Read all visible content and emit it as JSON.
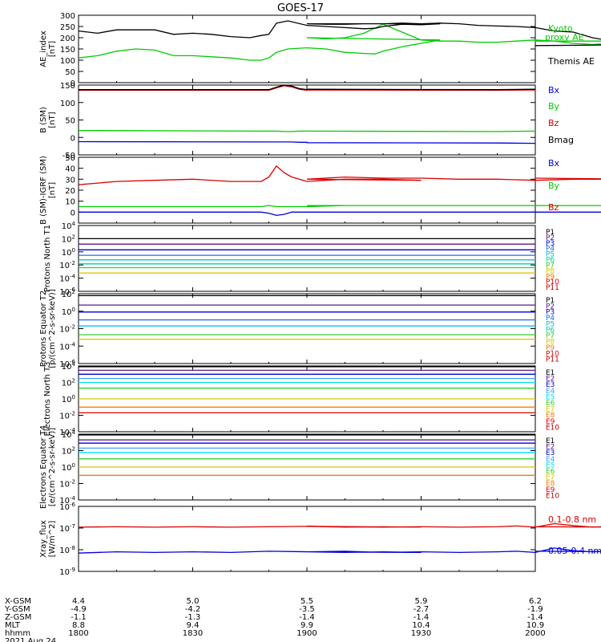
{
  "title": "GOES-17",
  "colors": {
    "black": "#000000",
    "blue": "#0000dd",
    "green": "#00cc00",
    "red": "#dd0000",
    "navy": "#1010a0",
    "purple": "#5a1a8a",
    "azure": "#1a70e0",
    "cyan": "#00c0e0",
    "teal": "#00d0a0",
    "lime": "#30d030",
    "gold": "#d8c800",
    "orange": "#f08000",
    "darkorange": "#e05000",
    "crimson": "#e00000",
    "maroon": "#c00000",
    "lightblue": "#40a0ff",
    "lightcyan": "#00e0ff"
  },
  "chart_data": [
    {
      "type": "line",
      "ylabel": "AE_index [nT]",
      "ylim": [
        0,
        300
      ],
      "yticks": [
        "0",
        "50",
        "100",
        "150",
        "200",
        "250",
        "300"
      ],
      "x": [
        1800,
        1805,
        1810,
        1815,
        1820,
        1825,
        1830,
        1835,
        1840,
        1845,
        1848,
        1850,
        1852,
        1855,
        1860,
        1865,
        1870,
        1875,
        1878,
        1880,
        1885,
        1890,
        1895,
        1900,
        1905,
        1910,
        1915,
        1920,
        1925,
        1930,
        1935,
        1940,
        1945,
        1950,
        1955,
        1960,
        1965,
        1970,
        1975,
        1980,
        1985,
        1990,
        1995,
        2000
      ],
      "series": [
        {
          "name": "Kyoto proxy AE",
          "color": "#00cc00",
          "values": [
            110,
            120,
            140,
            150,
            145,
            120,
            120,
            115,
            110,
            100,
            100,
            110,
            135,
            150,
            155,
            150,
            135,
            130,
            128,
            140,
            160,
            175,
            190,
            200,
            195,
            200,
            220,
            260,
            225,
            190,
            185,
            185,
            180,
            180,
            185,
            190,
            185,
            175,
            170,
            175,
            170,
            175,
            185,
            185
          ]
        },
        {
          "name": "Themis AE",
          "color": "#000000",
          "values": [
            230,
            220,
            235,
            235,
            235,
            215,
            220,
            215,
            205,
            200,
            210,
            215,
            265,
            275,
            255,
            250,
            245,
            240,
            242,
            250,
            260,
            258,
            262,
            262,
            260,
            260,
            262,
            262,
            265,
            262,
            265,
            262,
            255,
            252,
            250,
            245,
            230,
            225,
            200,
            185,
            180,
            180,
            170,
            165
          ]
        }
      ]
    },
    {
      "type": "line",
      "ylabel": "B (SM) [nT]",
      "ylim": [
        -50,
        150
      ],
      "yticks": [
        "-50",
        "0",
        "50",
        "100",
        "150"
      ],
      "x": [
        1800,
        1850,
        1852,
        1854,
        1856,
        1858,
        1860,
        1900,
        1950,
        2000
      ],
      "series": [
        {
          "name": "Bx",
          "color": "#0000dd",
          "values": [
            -12,
            -13,
            -13,
            -13,
            -13,
            -14,
            -14,
            -15,
            -16,
            -17
          ]
        },
        {
          "name": "By",
          "color": "#00cc00",
          "values": [
            20,
            18,
            18,
            17,
            17,
            18,
            18,
            18,
            17,
            18
          ]
        },
        {
          "name": "Bz",
          "color": "#dd0000",
          "values": [
            135,
            135,
            142,
            148,
            145,
            138,
            135,
            136,
            135,
            136
          ]
        },
        {
          "name": "Bmag",
          "color": "#000000",
          "values": [
            137,
            137,
            144,
            150,
            147,
            140,
            137,
            138,
            137,
            138
          ]
        }
      ]
    },
    {
      "type": "line",
      "ylabel": "B (SM)-IGRF (SM) [nT]",
      "ylim": [
        -10,
        50
      ],
      "yticks": [
        "0",
        "10",
        "20",
        "30",
        "40",
        "50"
      ],
      "x": [
        1800,
        1810,
        1820,
        1830,
        1840,
        1848,
        1850,
        1852,
        1854,
        1856,
        1858,
        1860,
        1870,
        1880,
        1890,
        1900,
        1910,
        1920,
        1930,
        1940,
        1950,
        1960,
        1970,
        1980,
        1990,
        2000
      ],
      "series": [
        {
          "name": "Bx",
          "color": "#0000dd",
          "values": [
            0,
            0,
            0,
            0,
            0,
            0,
            -1,
            -3,
            -2,
            0,
            0,
            0,
            0,
            0,
            0,
            0,
            0,
            0,
            0,
            0,
            0,
            0,
            0,
            0,
            0,
            0
          ]
        },
        {
          "name": "By",
          "color": "#00cc00",
          "values": [
            5,
            5,
            5,
            5,
            5,
            5,
            6,
            5,
            5,
            5,
            5,
            5,
            6,
            6,
            6,
            6,
            6,
            6,
            6,
            6,
            6,
            6,
            6,
            6,
            6,
            6
          ]
        },
        {
          "name": "Bz",
          "color": "#dd0000",
          "values": [
            25,
            28,
            29,
            30,
            28,
            28,
            32,
            42,
            36,
            32,
            30,
            28,
            30,
            30,
            29,
            30,
            32,
            31,
            31,
            30,
            30,
            29,
            30,
            30,
            30,
            31
          ]
        }
      ]
    },
    {
      "type": "line",
      "ylabel": "Protons North T1",
      "yscale": "log",
      "ylim": [
        1e-06,
        10000.0
      ],
      "yticks": [
        "10^-6",
        "10^-4",
        "10^-2",
        "10^0",
        "10^2",
        "10^4"
      ],
      "legend": [
        "P1",
        "P2",
        "P3",
        "P4",
        "P5",
        "P6",
        "P7",
        "P8",
        "P9",
        "P10",
        "P11"
      ],
      "x": [
        1800,
        2000
      ],
      "series": [
        {
          "name": "P1",
          "color": "#000000",
          "values": [
            100,
            100
          ]
        },
        {
          "name": "P2",
          "color": "#5a1a8a",
          "values": [
            15,
            15
          ]
        },
        {
          "name": "P3",
          "color": "#0000dd",
          "values": [
            2,
            2
          ]
        },
        {
          "name": "P4",
          "color": "#1a70e0",
          "values": [
            0.3,
            0.3
          ]
        },
        {
          "name": "P5",
          "color": "#00c0e0",
          "values": [
            0.06,
            0.06
          ]
        },
        {
          "name": "P6",
          "color": "#00d0a0",
          "values": [
            0.015,
            0.015
          ]
        },
        {
          "name": "P7",
          "color": "#30d030",
          "values": [
            0.004,
            0.004
          ]
        },
        {
          "name": "P8",
          "color": "#d8c800",
          "values": [
            0.0006,
            0.0006
          ]
        }
      ]
    },
    {
      "type": "line",
      "ylabel": "Protons Equator T2 [p/(cm^2-s-sr-keV)]",
      "yscale": "log",
      "ylim": [
        1e-06,
        100.0
      ],
      "yticks": [
        "10^-6",
        "10^-4",
        "10^-2",
        "10^0",
        "10^2"
      ],
      "legend": [
        "P1",
        "P2",
        "P3",
        "P4",
        "P5",
        "P6",
        "P7",
        "P8",
        "P9",
        "P10",
        "P11"
      ],
      "x": [
        1800,
        2000
      ],
      "series": [
        {
          "name": "P1",
          "color": "#000000",
          "values": [
            60,
            60
          ]
        },
        {
          "name": "P2",
          "color": "#5a1a8a",
          "values": [
            5,
            5
          ]
        },
        {
          "name": "P3",
          "color": "#0000dd",
          "values": [
            0.8,
            0.8
          ]
        },
        {
          "name": "P4",
          "color": "#1a70e0",
          "values": [
            0.1,
            0.1
          ]
        },
        {
          "name": "P5",
          "color": "#00c0e0",
          "values": [
            0.02,
            0.02
          ]
        },
        {
          "name": "P6",
          "color": "#30d030",
          "values": [
            0.002,
            0.002
          ]
        },
        {
          "name": "P7",
          "color": "#d8c800",
          "values": [
            0.0006,
            0.0006
          ]
        }
      ]
    },
    {
      "type": "line",
      "ylabel": "Electrons North T3",
      "yscale": "log",
      "ylim": [
        0.0001,
        10000.0
      ],
      "yticks": [
        "10^-4",
        "10^-2",
        "10^0",
        "10^2",
        "10^4"
      ],
      "legend": [
        "E1",
        "E2",
        "E3",
        "E4",
        "E5",
        "E6",
        "E7",
        "E8",
        "E9",
        "E10"
      ],
      "x": [
        1800,
        2000
      ],
      "series": [
        {
          "name": "E1",
          "color": "#000000",
          "values": [
            8000,
            8000
          ]
        },
        {
          "name": "E2",
          "color": "#5a1a8a",
          "values": [
            3000,
            3000
          ]
        },
        {
          "name": "E3",
          "color": "#0000dd",
          "values": [
            1000,
            1000
          ]
        },
        {
          "name": "E4",
          "color": "#40a0ff",
          "values": [
            300,
            300
          ]
        },
        {
          "name": "E5",
          "color": "#00e0ff",
          "values": [
            100,
            100
          ]
        },
        {
          "name": "E6",
          "color": "#30d030",
          "values": [
            20,
            20
          ]
        },
        {
          "name": "E7",
          "color": "#d8c800",
          "values": [
            1,
            1
          ]
        },
        {
          "name": "E8",
          "color": "#f08000",
          "values": [
            0.1,
            0.1
          ]
        },
        {
          "name": "E9",
          "color": "#e00000",
          "values": [
            0.02,
            0.02
          ]
        }
      ]
    },
    {
      "type": "line",
      "ylabel": "Electrons Equator T4 [e/(cm^2-s-sr-keV)]",
      "yscale": "log",
      "ylim": [
        0.0001,
        10000.0
      ],
      "yticks": [
        "10^-4",
        "10^-2",
        "10^0",
        "10^2",
        "10^4"
      ],
      "legend": [
        "E1",
        "E2",
        "E3",
        "E4",
        "E5",
        "E6",
        "E7",
        "E8",
        "E9",
        "E10"
      ],
      "x": [
        1800,
        2000
      ],
      "series": [
        {
          "name": "E1",
          "color": "#000000",
          "values": [
            8000,
            8000
          ]
        },
        {
          "name": "E2",
          "color": "#5a1a8a",
          "values": [
            2000,
            2000
          ]
        },
        {
          "name": "E3",
          "color": "#0000dd",
          "values": [
            800,
            800
          ]
        },
        {
          "name": "E4",
          "color": "#40a0ff",
          "values": [
            200,
            200
          ]
        },
        {
          "name": "E5",
          "color": "#00e0ff",
          "values": [
            60,
            60
          ]
        },
        {
          "name": "E6",
          "color": "#30d030",
          "values": [
            10,
            10
          ]
        },
        {
          "name": "E7",
          "color": "#d8c800",
          "values": [
            1,
            1
          ]
        },
        {
          "name": "E8",
          "color": "#f08000",
          "values": [
            0.1,
            0.1
          ]
        }
      ]
    },
    {
      "type": "line",
      "ylabel": "Xray_flux [W/m^2]",
      "yscale": "log",
      "ylim": [
        1e-09,
        1e-06
      ],
      "yticks": [
        "10^-9",
        "10^-8",
        "10^-7",
        "10^-6"
      ],
      "x": [
        1800,
        1810,
        1820,
        1830,
        1840,
        1850,
        1860,
        1870,
        1880,
        1890,
        1900,
        1910,
        1920,
        1930,
        1940,
        1950,
        1955,
        1960,
        1965,
        1970,
        1975,
        1980,
        1985,
        1990,
        2000
      ],
      "series": [
        {
          "name": "0.1-0.8 nm",
          "color": "#dd0000",
          "values": [
            1.1e-07,
            1.15e-07,
            1.1e-07,
            1.15e-07,
            1.1e-07,
            1.15e-07,
            1.2e-07,
            1.1e-07,
            1.15e-07,
            1.1e-07,
            1.2e-07,
            1.15e-07,
            1.1e-07,
            1.15e-07,
            1.1e-07,
            1.15e-07,
            1.25e-07,
            1.1e-07,
            1.6e-07,
            1.3e-07,
            1.1e-07,
            1.2e-07,
            1.5e-07,
            1.1e-07,
            1.15e-07
          ]
        },
        {
          "name": "0.05-0.4 nm",
          "color": "#0000dd",
          "values": [
            7e-09,
            8e-09,
            7.5e-09,
            8e-09,
            7.5e-09,
            8.5e-09,
            8e-09,
            7.5e-09,
            8e-09,
            7.5e-09,
            8e-09,
            8.5e-09,
            7.5e-09,
            8e-09,
            7.5e-09,
            8e-09,
            8.5e-09,
            7.5e-09,
            1.2e-08,
            9e-09,
            8e-09,
            8.5e-09,
            1.1e-08,
            8e-09,
            8.5e-09
          ]
        }
      ]
    }
  ],
  "xaxis": {
    "ticks": [
      "1800",
      "1830",
      "1900",
      "1930",
      "2000"
    ],
    "rows": [
      {
        "label": "X-GSM",
        "values": [
          "4.4",
          "5.0",
          "5.5",
          "5.9",
          "6.2"
        ]
      },
      {
        "label": "Y-GSM",
        "values": [
          "-4.9",
          "-4.2",
          "-3.5",
          "-2.7",
          "-1.9"
        ]
      },
      {
        "label": "Z-GSM",
        "values": [
          "-1.1",
          "-1.3",
          "-1.4",
          "-1.4",
          "-1.4"
        ]
      },
      {
        "label": "MLT",
        "values": [
          "8.8",
          "9.4",
          "9.9",
          "10.4",
          "10.9"
        ]
      },
      {
        "label": "hhmm",
        "values": [
          "1800",
          "1830",
          "1900",
          "1930",
          "2000"
        ]
      }
    ],
    "date": "2021 Aug 24"
  },
  "legends": {
    "ae": [
      {
        "text": "Kyoto",
        "color": "#00cc00"
      },
      {
        "text": "proxy AE",
        "color": "#00cc00"
      },
      {
        "text": "Themis AE",
        "color": "#000000"
      }
    ],
    "bsm": [
      {
        "text": "Bx",
        "color": "#0000dd"
      },
      {
        "text": "By",
        "color": "#00cc00"
      },
      {
        "text": "Bz",
        "color": "#dd0000"
      },
      {
        "text": "Bmag",
        "color": "#000000"
      }
    ],
    "bigrf": [
      {
        "text": "Bx",
        "color": "#0000dd"
      },
      {
        "text": "By",
        "color": "#00cc00"
      },
      {
        "text": "Bz",
        "color": "#dd0000"
      }
    ],
    "xray": [
      {
        "text": "0.1-0.8 nm",
        "color": "#dd0000"
      },
      {
        "text": "0.05-0.4 nm",
        "color": "#0000dd"
      }
    ],
    "protons_colors": [
      "#000000",
      "#5a1a8a",
      "#0000dd",
      "#1a70e0",
      "#00c0e0",
      "#00d0a0",
      "#30d030",
      "#d8c800",
      "#f08000",
      "#e00000",
      "#c00000"
    ],
    "electrons_colors": [
      "#000000",
      "#5a1a8a",
      "#0000dd",
      "#40a0ff",
      "#00e0ff",
      "#30d030",
      "#d8c800",
      "#f08000",
      "#e00000",
      "#c00000"
    ]
  }
}
